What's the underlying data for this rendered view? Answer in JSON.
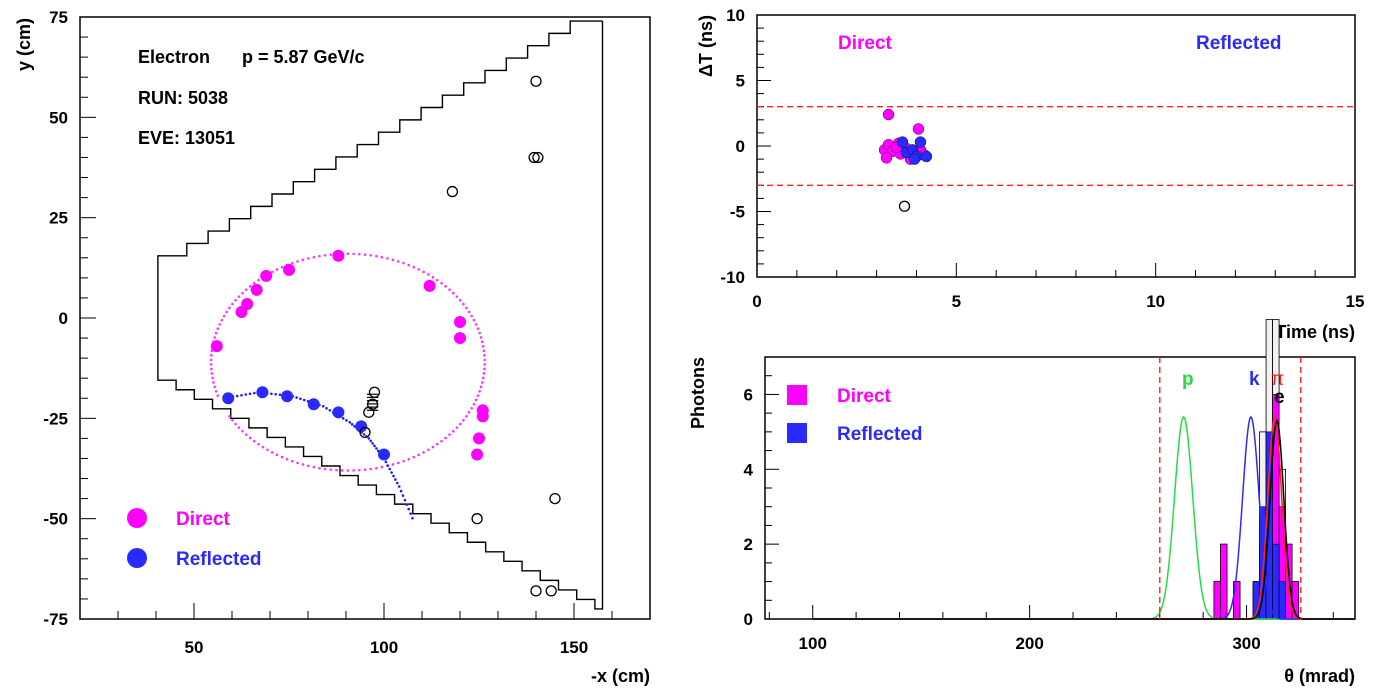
{
  "colors": {
    "direct": "#ff00ff",
    "direct_ring": "#ff33ff",
    "reflected": "#2a2aff",
    "reflected_ring": "#1a1aff",
    "cut_line": "#ff2020",
    "p_curve": "#22dd44",
    "k_curve": "#2a2aff",
    "pi_curve": "#ff2020",
    "e_curve": "#000000"
  },
  "chart_data": [
    {
      "id": "hit-map",
      "type": "scatter",
      "xlabel": "-x (cm)",
      "ylabel": "y (cm)",
      "xlim": [
        20,
        170
      ],
      "ylim": [
        -75,
        75
      ],
      "xticks": [
        "50",
        "100",
        "150"
      ],
      "yticks": [
        "-75",
        "-50",
        "-25",
        "0",
        "25",
        "50",
        "75"
      ],
      "info": {
        "particle": "Electron",
        "momentum": "p = 5.87 GeV/c",
        "run": "RUN: 5038",
        "event": "EVE: 13051"
      },
      "legend": [
        "Direct",
        "Reflected"
      ],
      "direct_ring": {
        "cx": 90.5,
        "cy": -11,
        "r": 36
      },
      "reflected_arc": [
        [
          58,
          -20
        ],
        [
          67,
          -18.5
        ],
        [
          76,
          -19.5
        ],
        [
          84,
          -22
        ],
        [
          91,
          -26
        ],
        [
          96,
          -30
        ],
        [
          100,
          -35
        ],
        [
          104,
          -42
        ],
        [
          108,
          -51
        ]
      ],
      "direct_hits": [
        [
          56,
          -7
        ],
        [
          62.5,
          1.5
        ],
        [
          64,
          3.5
        ],
        [
          66.5,
          7
        ],
        [
          69,
          10.5
        ],
        [
          75,
          12
        ],
        [
          88,
          15.5
        ],
        [
          112,
          8
        ],
        [
          120,
          -1
        ],
        [
          120,
          -5
        ],
        [
          126,
          -23
        ],
        [
          126,
          -24.5
        ],
        [
          125,
          -30
        ],
        [
          124.5,
          -34
        ]
      ],
      "reflected_hits": [
        [
          59,
          -20
        ],
        [
          68,
          -18.5
        ],
        [
          74.5,
          -19.5
        ],
        [
          81.5,
          -21.5
        ],
        [
          88,
          -23.5
        ],
        [
          94,
          -27
        ],
        [
          100,
          -34
        ]
      ],
      "open_hits": [
        [
          140,
          59
        ],
        [
          139.5,
          40
        ],
        [
          140.5,
          40
        ],
        [
          118,
          31.5
        ],
        [
          97.5,
          -18.5
        ],
        [
          97,
          -21.5
        ],
        [
          96,
          -23.5
        ],
        [
          95,
          -28.5
        ],
        [
          124.5,
          -50
        ],
        [
          145,
          -45
        ],
        [
          140,
          -68
        ],
        [
          144,
          -68
        ]
      ],
      "detector_outline": [
        [
          40.5,
          15.5
        ],
        [
          40.5,
          -15.5
        ],
        [
          157.5,
          -72.5
        ],
        [
          149,
          74
        ]
      ]
    },
    {
      "id": "timing",
      "type": "scatter",
      "xlabel": "Time (ns)",
      "ylabel": "ΔT (ns)",
      "xlim": [
        0,
        15
      ],
      "ylim": [
        -10,
        10
      ],
      "xticks": [
        "0",
        "5",
        "10",
        "15"
      ],
      "yticks": [
        "-10",
        "-5",
        "0",
        "5",
        "10"
      ],
      "cut_lines": [
        3,
        -3
      ],
      "labels": [
        "Direct",
        "Reflected"
      ],
      "direct_points": [
        [
          3.3,
          2.4
        ],
        [
          3.2,
          -0.3
        ],
        [
          3.3,
          0.1
        ],
        [
          3.4,
          -0.4
        ],
        [
          3.25,
          -0.9
        ],
        [
          3.6,
          -0.6
        ],
        [
          3.75,
          -0.2
        ],
        [
          3.9,
          -0.8
        ],
        [
          4.05,
          1.3
        ],
        [
          4.1,
          -0.3
        ],
        [
          4.2,
          -0.7
        ],
        [
          3.55,
          0.2
        ],
        [
          3.85,
          -1.0
        ],
        [
          3.5,
          -0.1
        ]
      ],
      "reflected_points": [
        [
          3.65,
          0.3
        ],
        [
          3.75,
          -0.5
        ],
        [
          3.9,
          -0.3
        ],
        [
          4.0,
          -0.8
        ],
        [
          4.1,
          0.3
        ],
        [
          3.95,
          -1.0
        ],
        [
          4.25,
          -0.8
        ]
      ],
      "open_points": [
        [
          3.7,
          -4.6
        ]
      ]
    },
    {
      "id": "theta",
      "type": "bar",
      "xlabel": "θ (mrad)",
      "ylabel": "Photons",
      "xlim": [
        78,
        350
      ],
      "ylim": [
        0,
        7
      ],
      "xticks": [
        "100",
        "200",
        "300"
      ],
      "yticks": [
        "0",
        "2",
        "4",
        "6"
      ],
      "cut_lines": [
        260,
        325
      ],
      "legend": [
        "Direct",
        "Reflected"
      ],
      "curve_labels": [
        "p",
        "k",
        "π",
        "e"
      ],
      "curves": [
        {
          "name": "p",
          "mean": 271,
          "sigma": 4.2,
          "peak": 5.4
        },
        {
          "name": "k",
          "mean": 302,
          "sigma": 3.8,
          "peak": 5.4
        },
        {
          "name": "pi",
          "mean": 313,
          "sigma": 3.2,
          "peak": 5.4
        },
        {
          "name": "e",
          "mean": 314,
          "sigma": 3.2,
          "peak": 5.3
        }
      ],
      "bin_width": 3,
      "direct_bins": [
        [
          285,
          1
        ],
        [
          288,
          2
        ],
        [
          294,
          1
        ],
        [
          306,
          2
        ],
        [
          309,
          3
        ],
        [
          312,
          6
        ],
        [
          315,
          3
        ],
        [
          318,
          2
        ],
        [
          321,
          1
        ]
      ],
      "reflected_bins": [
        [
          303,
          1
        ],
        [
          306,
          3
        ],
        [
          309,
          5
        ],
        [
          312,
          2
        ],
        [
          315,
          1
        ]
      ],
      "total_bins": [
        [
          285,
          1
        ],
        [
          288,
          2
        ],
        [
          294,
          1
        ],
        [
          303,
          1
        ],
        [
          306,
          5
        ],
        [
          309,
          8
        ],
        [
          312,
          8
        ],
        [
          315,
          4
        ],
        [
          318,
          2
        ],
        [
          321,
          1
        ]
      ]
    }
  ]
}
